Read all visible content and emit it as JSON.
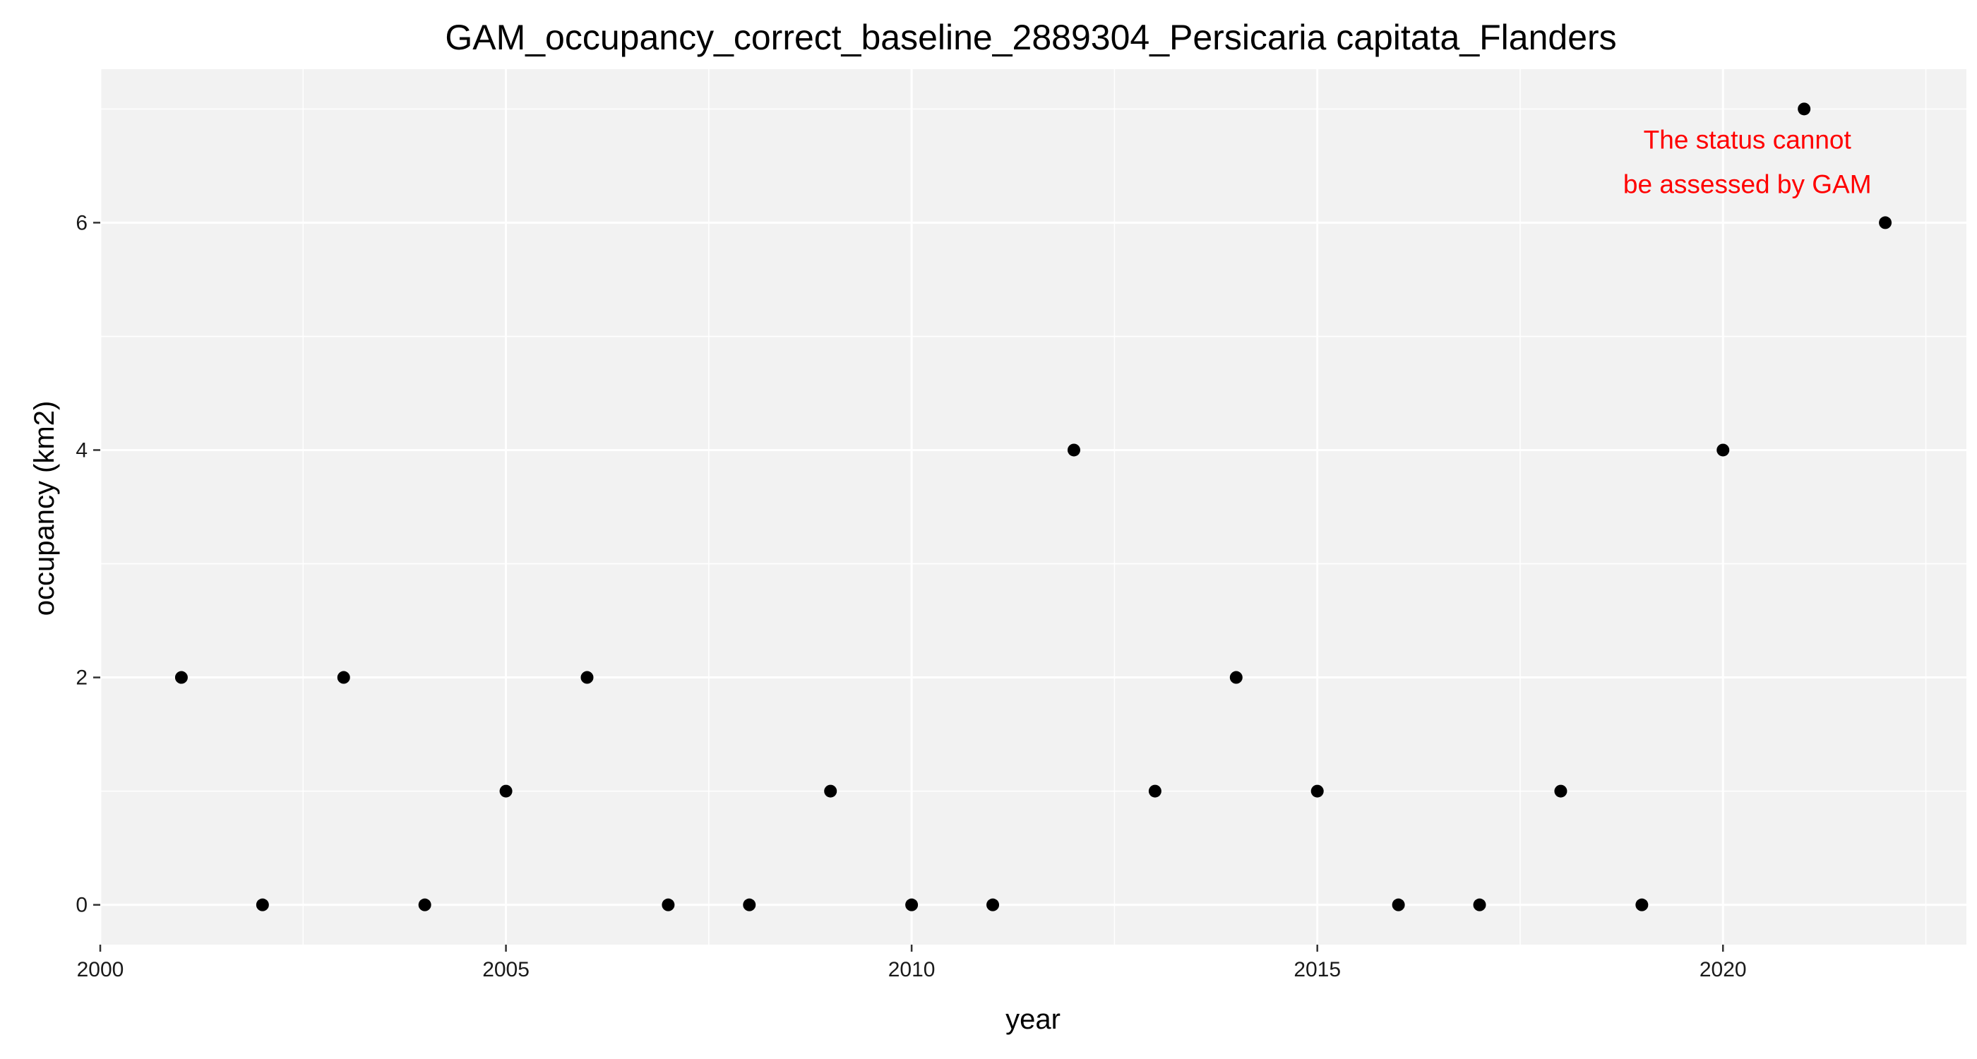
{
  "chart_data": {
    "type": "scatter",
    "title": "GAM_occupancy_correct_baseline_2889304_Persicaria capitata_Flanders",
    "xlabel": "year",
    "ylabel": "occupancy (km2)",
    "xlim": [
      2000,
      2023
    ],
    "ylim": [
      -0.35,
      7.35
    ],
    "x_ticks": [
      2000,
      2005,
      2010,
      2015,
      2020
    ],
    "y_ticks": [
      0,
      2,
      4,
      6
    ],
    "grid": true,
    "series": [
      {
        "x": [
          2001,
          2002,
          2003,
          2004,
          2005,
          2006,
          2007,
          2008,
          2009,
          2010,
          2011,
          2012,
          2013,
          2014,
          2015,
          2016,
          2017,
          2018,
          2019,
          2020,
          2021,
          2022
        ],
        "y": [
          2,
          0,
          2,
          0,
          1,
          2,
          0,
          0,
          1,
          0,
          0,
          4,
          1,
          2,
          1,
          0,
          0,
          1,
          0,
          4,
          7,
          6
        ]
      }
    ],
    "annotations": [
      {
        "lines": [
          "The status cannot",
          "be assessed by GAM"
        ],
        "color": "#ff0000",
        "x": 2020.3,
        "y": 6.65
      }
    ]
  },
  "colors": {
    "panel_background": "#f2f2f2",
    "grid": "#ffffff",
    "points": "#000000",
    "annotation": "#ff0000"
  }
}
